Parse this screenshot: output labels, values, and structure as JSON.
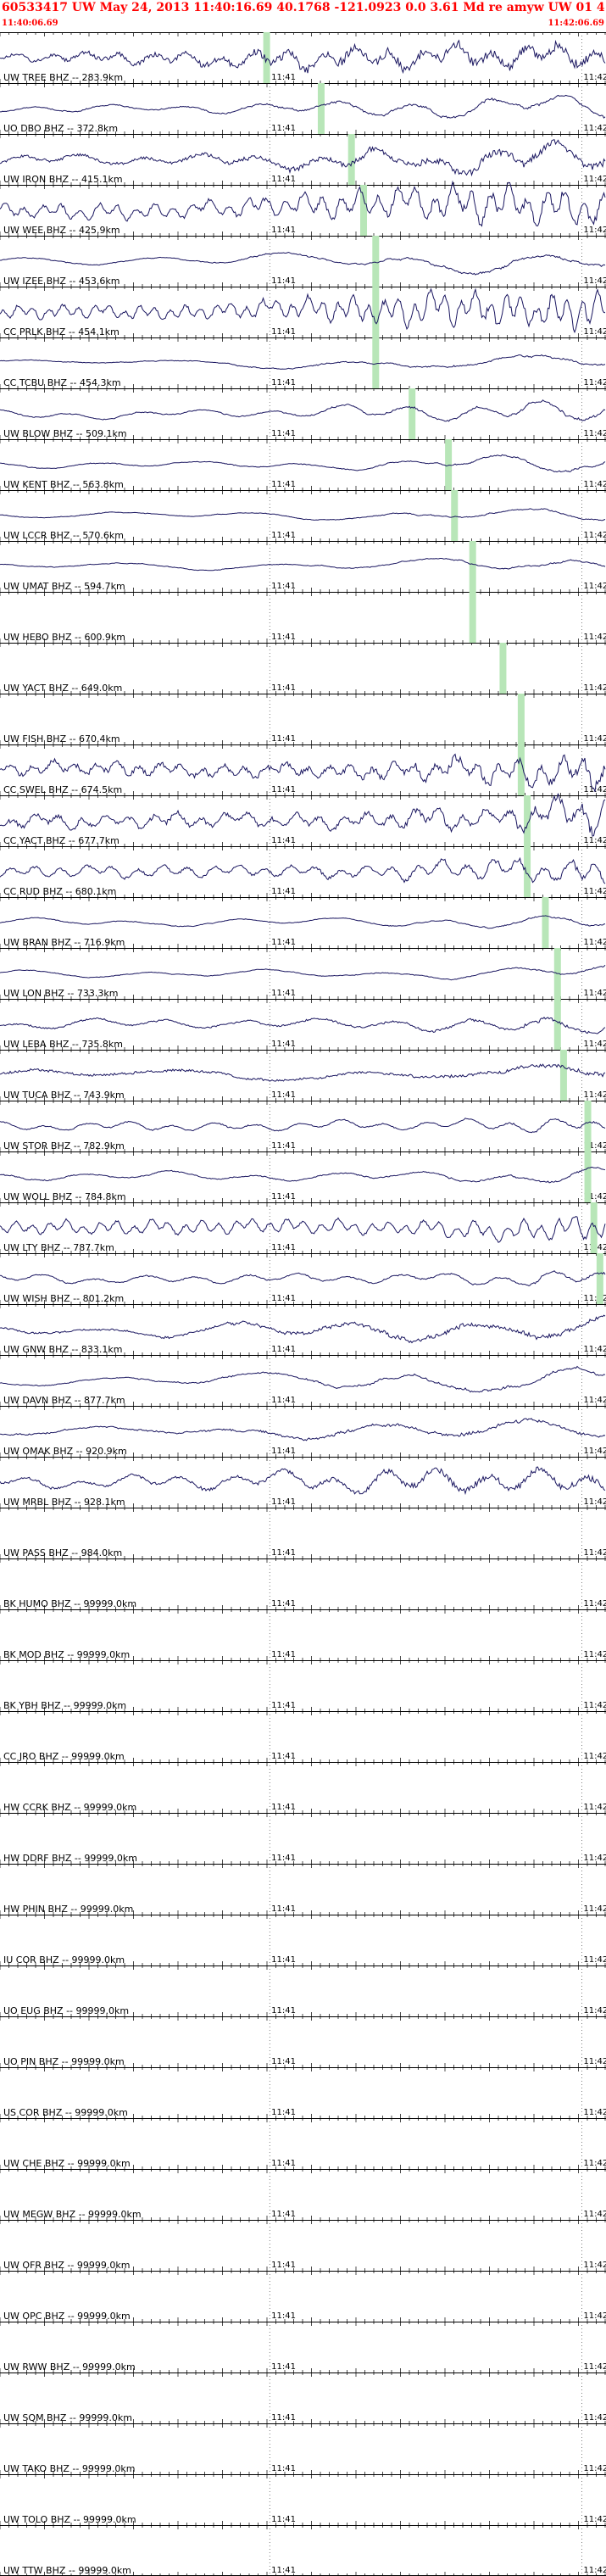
{
  "header": {
    "title": "60533417 UW May 24, 2013 11:40:16.69   40.1768 -121.0923  0.0 3.61 Md re amyw UW 01   4",
    "start_time": "11:40:06.69",
    "end_time": "11:42:06.69"
  },
  "colors": {
    "header_text": "#ff0000",
    "trace": "#1a1660",
    "pick_marker": "#b8e6b8",
    "grid": "#000000"
  },
  "time_labels": [
    "11:41",
    "11:42"
  ],
  "traces": [
    {
      "label": "UW TREE BHZ -- 283.9km",
      "active": true,
      "amp": 0.55,
      "noise": 0.35,
      "period": 40,
      "pick": 0.44
    },
    {
      "label": "UO DBO BHZ -- 372.8km",
      "active": true,
      "amp": 0.45,
      "noise": 0.1,
      "period": 90,
      "pick": 0.53
    },
    {
      "label": "UW IRON BHZ -- 415.1km",
      "active": true,
      "amp": 0.6,
      "noise": 0.25,
      "period": 70,
      "pick": 0.58
    },
    {
      "label": "UW WEE BHZ -- 425.9km",
      "active": true,
      "amp": 0.85,
      "noise": 0.2,
      "period": 22,
      "pick": 0.6
    },
    {
      "label": "UW IZEE BHZ -- 453.6km",
      "active": true,
      "amp": 0.5,
      "noise": 0.05,
      "period": 150,
      "pick": 0.62
    },
    {
      "label": "CC PRLK BHZ -- 454.1km",
      "active": true,
      "amp": 0.8,
      "noise": 0.2,
      "period": 18,
      "pick": 0.62
    },
    {
      "label": "CC TCBU BHZ -- 454.3km",
      "active": true,
      "amp": 0.4,
      "noise": 0.05,
      "period": 200,
      "pick": 0.62
    },
    {
      "label": "UW BLOW BHZ -- 509.1km",
      "active": true,
      "amp": 0.45,
      "noise": 0.08,
      "period": 80,
      "pick": 0.68
    },
    {
      "label": "UW KENT BHZ -- 563.8km",
      "active": true,
      "amp": 0.4,
      "noise": 0.06,
      "period": 120,
      "pick": 0.74
    },
    {
      "label": "UW LCCR BHZ -- 570.6km",
      "active": true,
      "amp": 0.35,
      "noise": 0.04,
      "period": 160,
      "pick": 0.75
    },
    {
      "label": "UW UMAT BHZ -- 594.7km",
      "active": true,
      "amp": 0.4,
      "noise": 0.04,
      "period": 180,
      "pick": 0.78
    },
    {
      "label": "UW HEBO BHZ -- 600.9km",
      "active": false,
      "pick": 0.78
    },
    {
      "label": "UW YACT BHZ -- 649.0km",
      "active": false,
      "pick": 0.83
    },
    {
      "label": "UW FISH BHZ -- 670.4km",
      "active": false,
      "pick": 0.86
    },
    {
      "label": "CC SWEL BHZ -- 674.5km",
      "active": true,
      "amp": 0.75,
      "noise": 0.35,
      "period": 25,
      "pick": 0.86
    },
    {
      "label": "CC YACT BHZ -- 677.7km",
      "active": true,
      "amp": 0.8,
      "noise": 0.3,
      "period": 28,
      "pick": 0.87
    },
    {
      "label": "CC RUD BHZ -- 680.1km",
      "active": true,
      "amp": 0.7,
      "noise": 0.2,
      "period": 30,
      "pick": 0.87
    },
    {
      "label": "UW BRAN BHZ -- 716.9km",
      "active": true,
      "amp": 0.45,
      "noise": 0.04,
      "period": 120,
      "pick": 0.9
    },
    {
      "label": "UW LON BHZ -- 733.3km",
      "active": true,
      "amp": 0.4,
      "noise": 0.05,
      "period": 140,
      "pick": 0.92
    },
    {
      "label": "UW LEBA BHZ -- 735.8km",
      "active": true,
      "amp": 0.55,
      "noise": 0.15,
      "period": 90,
      "pick": 0.92
    },
    {
      "label": "UW TUCA BHZ -- 743.9km",
      "active": true,
      "amp": 0.55,
      "noise": 0.2,
      "period": 200,
      "pick": 0.93
    },
    {
      "label": "UW STOR BHZ -- 782.9km",
      "active": true,
      "amp": 0.5,
      "noise": 0.1,
      "period": 50,
      "pick": 0.97
    },
    {
      "label": "UW WOLL BHZ -- 784.8km",
      "active": true,
      "amp": 0.5,
      "noise": 0.08,
      "period": 100,
      "pick": 0.97
    },
    {
      "label": "UW LTY BHZ -- 787.7km",
      "active": true,
      "amp": 0.8,
      "noise": 0.15,
      "period": 20,
      "pick": 0.98
    },
    {
      "label": "UW WISH BHZ -- 801.2km",
      "active": true,
      "amp": 0.55,
      "noise": 0.1,
      "period": 60,
      "pick": 0.99
    },
    {
      "label": "UW GNW BHZ -- 833.1km",
      "active": true,
      "amp": 0.55,
      "noise": 0.15,
      "period": 150
    },
    {
      "label": "UW DAVN BHZ -- 877.7km",
      "active": true,
      "amp": 0.5,
      "noise": 0.06,
      "period": 180
    },
    {
      "label": "UW OMAK BHZ -- 920.9km",
      "active": true,
      "amp": 0.5,
      "noise": 0.1,
      "period": 170
    },
    {
      "label": "UW MRBL BHZ -- 928.1km",
      "active": true,
      "amp": 0.6,
      "noise": 0.2,
      "period": 60
    },
    {
      "label": "UW PASS BHZ -- 984.0km",
      "active": false
    },
    {
      "label": "BK HUMO BHZ -- 99999.0km",
      "active": false
    },
    {
      "label": "BK MOD BHZ -- 99999.0km",
      "active": false
    },
    {
      "label": "BK YBH BHZ -- 99999.0km",
      "active": false
    },
    {
      "label": "CC JRO BHZ -- 99999.0km",
      "active": false
    },
    {
      "label": "HW CCRK BHZ -- 99999.0km",
      "active": false
    },
    {
      "label": "HW DDRF BHZ -- 99999.0km",
      "active": false
    },
    {
      "label": "HW PHIN BHZ -- 99999.0km",
      "active": false
    },
    {
      "label": "IU COR BHZ -- 99999.0km",
      "active": false
    },
    {
      "label": "UO EUG BHZ -- 99999.0km",
      "active": false
    },
    {
      "label": "UO PIN BHZ -- 99999.0km",
      "active": false
    },
    {
      "label": "US COR BHZ -- 99999.0km",
      "active": false
    },
    {
      "label": "UW CHE BHZ -- 99999.0km",
      "active": false
    },
    {
      "label": "UW MEGW BHZ -- 99999.0km",
      "active": false
    },
    {
      "label": "UW OFR BHZ -- 99999.0km",
      "active": false
    },
    {
      "label": "UW OPC BHZ -- 99999.0km",
      "active": false
    },
    {
      "label": "UW RWW BHZ -- 99999.0km",
      "active": false
    },
    {
      "label": "UW SQM BHZ -- 99999.0km",
      "active": false
    },
    {
      "label": "UW TAKO BHZ -- 99999.0km",
      "active": false
    },
    {
      "label": "UW TOLO BHZ -- 99999.0km",
      "active": false
    },
    {
      "label": "UW TTW BHZ -- 99999.0km",
      "active": false
    }
  ]
}
